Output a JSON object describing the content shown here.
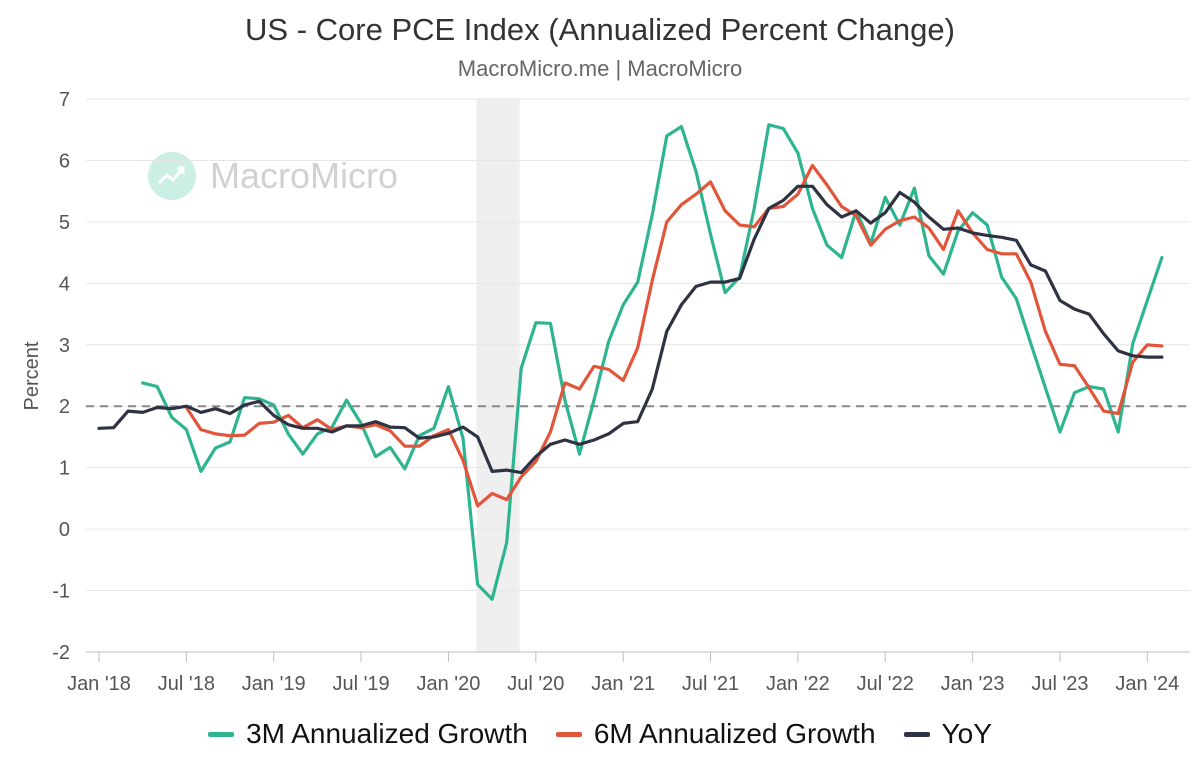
{
  "header": {
    "title": "US - Core PCE Index (Annualized Percent Change)",
    "subtitle": "MacroMicro.me | MacroMicro"
  },
  "watermark": {
    "text": "MacroMicro",
    "icon": "chart-up-icon"
  },
  "colors": {
    "series_3m": "#2eb58f",
    "series_6m": "#e1553a",
    "series_yoy": "#2f3243",
    "grid": "#e6e6e6",
    "reference_line": "#888888",
    "recession_band": "#efefef"
  },
  "chart_data": {
    "type": "line",
    "ylabel": "Percent",
    "ylim": [
      -2,
      7
    ],
    "yticks": [
      "7",
      "6",
      "5",
      "4",
      "3",
      "2",
      "1",
      "0",
      "-1",
      "-2"
    ],
    "xticks": [
      "Jan '18",
      "Jul '18",
      "Jan '19",
      "Jul '19",
      "Jan '20",
      "Jul '20",
      "Jan '21",
      "Jul '21",
      "Jan '22",
      "Jul '22",
      "Jan '23",
      "Jul '23",
      "Jan '24"
    ],
    "reference_line": 2,
    "shaded_range": [
      "2020-03",
      "2020-05"
    ],
    "x_start": "2018-01",
    "legend_position": "bottom",
    "series": [
      {
        "name": "3M Annualized Growth",
        "values": [
          null,
          null,
          null,
          2.38,
          2.32,
          1.82,
          1.62,
          0.94,
          1.32,
          1.42,
          2.14,
          2.12,
          2.02,
          1.55,
          1.22,
          1.55,
          1.66,
          2.1,
          1.72,
          1.18,
          1.33,
          0.98,
          1.52,
          1.64,
          2.32,
          1.48,
          -0.9,
          -1.14,
          -0.22,
          2.62,
          3.36,
          3.35,
          2.1,
          1.22,
          2.1,
          3.05,
          3.65,
          4.02,
          5.12,
          6.4,
          6.55,
          5.82,
          4.8,
          3.85,
          4.1,
          5.22,
          6.58,
          6.52,
          6.12,
          5.22,
          4.62,
          4.42,
          5.18,
          4.65,
          5.4,
          4.95,
          5.55,
          4.45,
          4.15,
          4.85,
          5.15,
          4.95,
          4.1,
          3.75,
          3.02,
          2.3,
          1.58,
          2.22,
          2.32,
          2.28,
          1.58,
          3.02,
          3.72,
          4.42
        ]
      },
      {
        "name": "6M Annualized Growth",
        "values": [
          null,
          null,
          null,
          null,
          null,
          null,
          1.98,
          1.62,
          1.55,
          1.52,
          1.53,
          1.72,
          1.74,
          1.85,
          1.65,
          1.78,
          1.62,
          1.68,
          1.65,
          1.7,
          1.6,
          1.35,
          1.35,
          1.52,
          1.62,
          1.12,
          0.38,
          0.58,
          0.48,
          0.85,
          1.1,
          1.58,
          2.38,
          2.28,
          2.65,
          2.6,
          2.42,
          2.95,
          4.05,
          5.0,
          5.28,
          5.45,
          5.65,
          5.18,
          4.95,
          4.92,
          5.22,
          5.25,
          5.45,
          5.92,
          5.6,
          5.25,
          5.1,
          4.62,
          4.88,
          5.02,
          5.08,
          4.9,
          4.55,
          5.18,
          4.82,
          4.55,
          4.48,
          4.48,
          4.02,
          3.22,
          2.68,
          2.66,
          2.3,
          1.92,
          1.88,
          2.72,
          3.0,
          2.98
        ]
      },
      {
        "name": "YoY",
        "values": [
          1.64,
          1.65,
          1.92,
          1.9,
          1.98,
          1.96,
          2.0,
          1.9,
          1.96,
          1.88,
          2.02,
          2.08,
          1.85,
          1.7,
          1.64,
          1.64,
          1.58,
          1.68,
          1.68,
          1.75,
          1.66,
          1.65,
          1.48,
          1.5,
          1.56,
          1.66,
          1.5,
          0.94,
          0.96,
          0.92,
          1.18,
          1.38,
          1.45,
          1.38,
          1.45,
          1.55,
          1.72,
          1.75,
          2.28,
          3.22,
          3.65,
          3.95,
          4.02,
          4.02,
          4.08,
          4.72,
          5.22,
          5.35,
          5.58,
          5.58,
          5.28,
          5.08,
          5.18,
          4.98,
          5.15,
          5.48,
          5.32,
          5.08,
          4.88,
          4.9,
          4.82,
          4.78,
          4.75,
          4.7,
          4.3,
          4.2,
          3.72,
          3.58,
          3.5,
          3.18,
          2.9,
          2.82,
          2.8,
          2.8
        ]
      }
    ]
  }
}
